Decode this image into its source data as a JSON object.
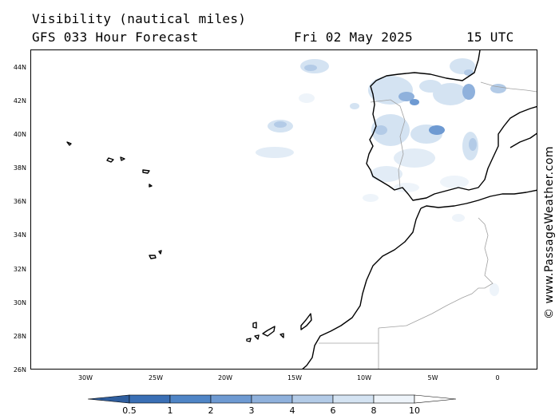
{
  "header": {
    "title": "Visibility (nautical miles)",
    "subtitle": "GFS 033 Hour Forecast",
    "date": "Fri 02 May 2025",
    "time": "15 UTC"
  },
  "axes": {
    "lat_labels": [
      "44N",
      "42N",
      "40N",
      "38N",
      "36N",
      "34N",
      "32N",
      "30N",
      "28N",
      "26N"
    ],
    "lon_labels": [
      "30W",
      "25W",
      "20W",
      "15W",
      "10W",
      "5W",
      "0"
    ]
  },
  "legend": {
    "levels": [
      "0.5",
      "1",
      "2",
      "3",
      "4",
      "6",
      "8",
      "10"
    ],
    "colors": [
      "#3a6fb5",
      "#4f85c6",
      "#6e9ad2",
      "#8fb1dc",
      "#b3cbe7",
      "#d4e3f2",
      "#eef4fa",
      "#ffffff"
    ]
  },
  "credit": "© www.PassageWeather.com",
  "colors": {
    "coastline": "#000000",
    "border": "#a0a0a0",
    "frame": "#000000"
  }
}
